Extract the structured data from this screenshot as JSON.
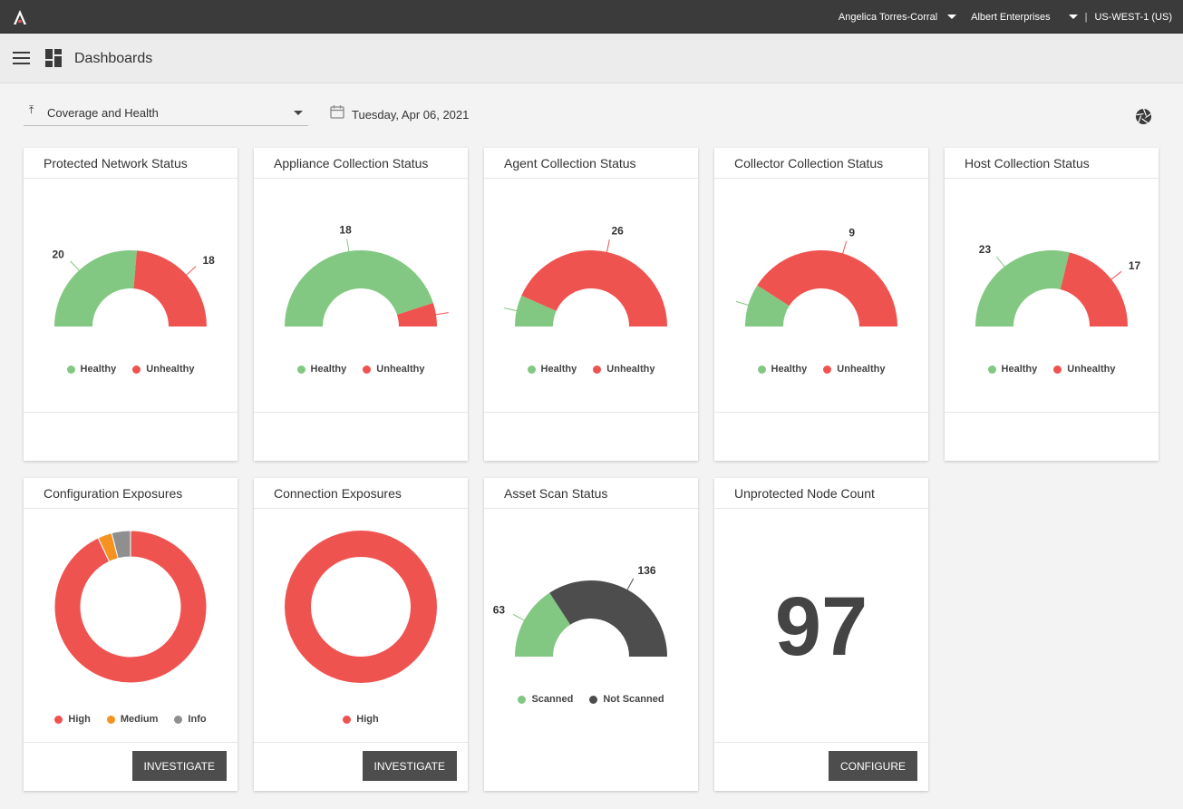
{
  "header": {
    "user": "Angelica Torres-Corral",
    "organization": "Albert Enterprises",
    "region": "US-WEST-1 (US)",
    "separator": "|"
  },
  "subheader": {
    "title": "Dashboards"
  },
  "toolbar": {
    "dashboard_select": "Coverage and Health",
    "date": "Tuesday, Apr 06, 2021"
  },
  "colors": {
    "healthy": "#82c882",
    "unhealthy": "#ef5350",
    "medium": "#f59220",
    "info": "#8f8f8f",
    "not_scanned": "#4d4d4d"
  },
  "legends": {
    "healthy": "Healthy",
    "unhealthy": "Unhealthy",
    "high": "High",
    "medium": "Medium",
    "info": "Info",
    "scanned": "Scanned",
    "not_scanned": "Not Scanned"
  },
  "cards": {
    "protected_network": {
      "title": "Protected Network Status",
      "chart_data": {
        "type": "pie",
        "style": "half-donut",
        "categories": [
          "Healthy",
          "Unhealthy"
        ],
        "values": [
          20,
          18
        ],
        "labels": [
          "20",
          "18"
        ]
      }
    },
    "appliance": {
      "title": "Appliance Collection Status",
      "chart_data": {
        "type": "pie",
        "style": "half-donut",
        "categories": [
          "Healthy",
          "Unhealthy"
        ],
        "values": [
          18,
          2
        ],
        "labels": [
          "18",
          ""
        ]
      }
    },
    "agent": {
      "title": "Agent Collection Status",
      "chart_data": {
        "type": "pie",
        "style": "half-donut",
        "categories": [
          "Healthy",
          "Unhealthy"
        ],
        "values": [
          4,
          26
        ],
        "labels": [
          "",
          "26"
        ]
      }
    },
    "collector": {
      "title": "Collector Collection Status",
      "chart_data": {
        "type": "pie",
        "style": "half-donut",
        "categories": [
          "Healthy",
          "Unhealthy"
        ],
        "values": [
          2,
          9
        ],
        "labels": [
          "",
          "9"
        ]
      }
    },
    "host": {
      "title": "Host Collection Status",
      "chart_data": {
        "type": "pie",
        "style": "half-donut",
        "categories": [
          "Healthy",
          "Unhealthy"
        ],
        "values": [
          23,
          17
        ],
        "labels": [
          "23",
          "17"
        ]
      }
    },
    "config_exposures": {
      "title": "Configuration Exposures",
      "button": "INVESTIGATE",
      "chart_data": {
        "type": "pie",
        "style": "donut",
        "categories": [
          "High",
          "Medium",
          "Info"
        ],
        "values": [
          93,
          3,
          4
        ]
      }
    },
    "connection_exposures": {
      "title": "Connection Exposures",
      "button": "INVESTIGATE",
      "chart_data": {
        "type": "pie",
        "style": "donut",
        "categories": [
          "High"
        ],
        "values": [
          100
        ]
      }
    },
    "asset_scan": {
      "title": "Asset Scan Status",
      "chart_data": {
        "type": "pie",
        "style": "half-donut",
        "categories": [
          "Scanned",
          "Not Scanned"
        ],
        "values": [
          63,
          136
        ],
        "labels": [
          "63",
          "136"
        ]
      }
    },
    "unprotected": {
      "title": "Unprotected Node Count",
      "value": "97",
      "button": "CONFIGURE"
    }
  }
}
